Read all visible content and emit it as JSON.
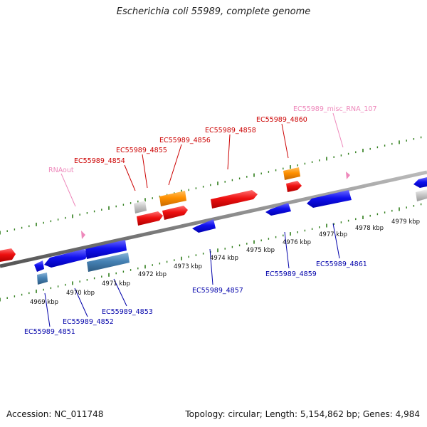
{
  "title": "Escherichia coli 55989, complete genome",
  "footer": {
    "accession": "Accession: NC_011748",
    "summary": "Topology: circular; Length: 5,154,862 bp; Genes: 4,984"
  },
  "colors": {
    "top_label": "#cc0000",
    "bottom_label": "#0000aa",
    "misc_label": "#ee88bb",
    "ruler_ticks": "#2e7d1a",
    "backbone": "#888888"
  },
  "ruler": {
    "unit": "kbp",
    "labels": [
      "4969 kbp",
      "4970 kbp",
      "4971 kbp",
      "4972 kbp",
      "4973 kbp",
      "4974 kbp",
      "4975 kbp",
      "4976 kbp",
      "4977 kbp",
      "4978 kbp",
      "4979 kbp"
    ]
  },
  "top_strand_labels": [
    {
      "name": "RNAout",
      "kind": "misc"
    },
    {
      "name": "EC55989_4854",
      "kind": "gene"
    },
    {
      "name": "EC55989_4855",
      "kind": "gene"
    },
    {
      "name": "EC55989_4856",
      "kind": "gene"
    },
    {
      "name": "EC55989_4858",
      "kind": "gene"
    },
    {
      "name": "EC55989_4860",
      "kind": "gene"
    },
    {
      "name": "EC55989_misc_RNA_107",
      "kind": "misc"
    }
  ],
  "bottom_strand_labels": [
    {
      "name": "EC55989_4851"
    },
    {
      "name": "EC55989_4852"
    },
    {
      "name": "EC55989_4853"
    },
    {
      "name": "EC55989_4857"
    },
    {
      "name": "EC55989_4859"
    },
    {
      "name": "EC55989_4861"
    }
  ]
}
